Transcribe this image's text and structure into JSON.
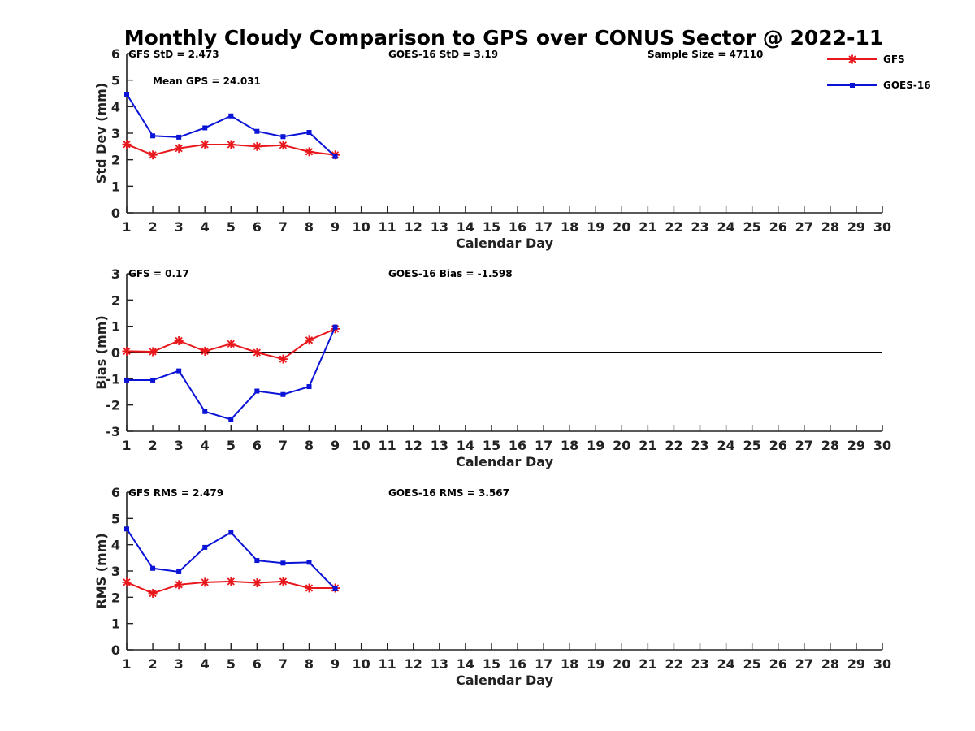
{
  "title": "Monthly Cloudy Comparison to GPS over CONUS Sector @ 2022-11",
  "colors": {
    "gfs": "#e8171b",
    "goes": "#0a13d6",
    "axis": "#222222",
    "zero_line": "#000000"
  },
  "legend": {
    "position": "top-right",
    "items": [
      {
        "name": "GFS",
        "marker": "asterisk",
        "color": "#e8171b"
      },
      {
        "name": "GOES-16",
        "marker": "square",
        "color": "#0a13d6"
      }
    ]
  },
  "chart_data": [
    {
      "type": "line",
      "xlabel": "Calendar Day",
      "ylabel": "Std Dev (mm)",
      "xlim": [
        1,
        30
      ],
      "ylim": [
        0,
        6
      ],
      "xticks": [
        "1",
        "2",
        "3",
        "4",
        "5",
        "6",
        "7",
        "8",
        "9",
        "10",
        "11",
        "12",
        "13",
        "14",
        "15",
        "16",
        "17",
        "18",
        "19",
        "20",
        "21",
        "22",
        "23",
        "24",
        "25",
        "26",
        "27",
        "28",
        "29",
        "30"
      ],
      "yticks": [
        "0",
        "1",
        "2",
        "3",
        "4",
        "5",
        "6"
      ],
      "annotations": [
        "GFS StD = 2.473",
        "GOES-16 StD = 3.19",
        "Sample Size = 47110",
        "Mean GPS = 24.031"
      ],
      "zero_line": false,
      "x": [
        1,
        2,
        3,
        4,
        5,
        6,
        7,
        8,
        9
      ],
      "series": [
        {
          "name": "GFS",
          "values": [
            2.58,
            2.18,
            2.43,
            2.57,
            2.57,
            2.5,
            2.55,
            2.3,
            2.18
          ]
        },
        {
          "name": "GOES-16",
          "values": [
            4.47,
            2.9,
            2.85,
            3.2,
            3.65,
            3.07,
            2.87,
            3.03,
            2.12
          ]
        }
      ]
    },
    {
      "type": "line",
      "xlabel": "Calendar Day",
      "ylabel": "Bias (mm)",
      "xlim": [
        1,
        30
      ],
      "ylim": [
        -3,
        3
      ],
      "xticks": [
        "1",
        "2",
        "3",
        "4",
        "5",
        "6",
        "7",
        "8",
        "9",
        "10",
        "11",
        "12",
        "13",
        "14",
        "15",
        "16",
        "17",
        "18",
        "19",
        "20",
        "21",
        "22",
        "23",
        "24",
        "25",
        "26",
        "27",
        "28",
        "29",
        "30"
      ],
      "yticks": [
        "-3",
        "-2",
        "-1",
        "0",
        "1",
        "2",
        "3"
      ],
      "annotations": [
        "GFS = 0.17",
        "GOES-16 Bias = -1.598"
      ],
      "zero_line": true,
      "x": [
        1,
        2,
        3,
        4,
        5,
        6,
        7,
        8,
        9
      ],
      "series": [
        {
          "name": "GFS",
          "values": [
            0.05,
            0.03,
            0.45,
            0.05,
            0.33,
            0.0,
            -0.25,
            0.47,
            0.9
          ]
        },
        {
          "name": "GOES-16",
          "values": [
            -1.05,
            -1.05,
            -0.7,
            -2.25,
            -2.55,
            -1.47,
            -1.6,
            -1.3,
            0.97
          ]
        }
      ]
    },
    {
      "type": "line",
      "xlabel": "Calendar Day",
      "ylabel": "RMS (mm)",
      "xlim": [
        1,
        30
      ],
      "ylim": [
        0,
        6
      ],
      "xticks": [
        "1",
        "2",
        "3",
        "4",
        "5",
        "6",
        "7",
        "8",
        "9",
        "10",
        "11",
        "12",
        "13",
        "14",
        "15",
        "16",
        "17",
        "18",
        "19",
        "20",
        "21",
        "22",
        "23",
        "24",
        "25",
        "26",
        "27",
        "28",
        "29",
        "30"
      ],
      "yticks": [
        "0",
        "1",
        "2",
        "3",
        "4",
        "5",
        "6"
      ],
      "annotations": [
        "GFS RMS = 2.479",
        "GOES-16 RMS = 3.567"
      ],
      "zero_line": false,
      "x": [
        1,
        2,
        3,
        4,
        5,
        6,
        7,
        8,
        9
      ],
      "series": [
        {
          "name": "GFS",
          "values": [
            2.57,
            2.15,
            2.48,
            2.57,
            2.6,
            2.55,
            2.6,
            2.35,
            2.35
          ]
        },
        {
          "name": "GOES-16",
          "values": [
            4.6,
            3.1,
            2.97,
            3.9,
            4.47,
            3.4,
            3.3,
            3.33,
            2.32
          ]
        }
      ]
    }
  ]
}
